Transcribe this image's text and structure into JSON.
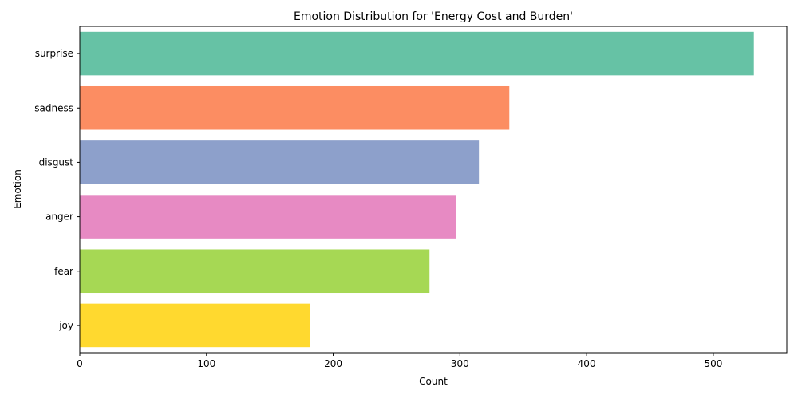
{
  "chart_data": {
    "type": "bar",
    "orientation": "horizontal",
    "title": "Emotion Distribution for 'Energy Cost and Burden'",
    "xlabel": "Count",
    "ylabel": "Emotion",
    "categories": [
      "surprise",
      "sadness",
      "disgust",
      "anger",
      "fear",
      "joy"
    ],
    "values": [
      532,
      339,
      315,
      297,
      276,
      182
    ],
    "colors": [
      "#66c2a5",
      "#fc8d62",
      "#8da0cb",
      "#e78ac3",
      "#a6d854",
      "#ffd92f"
    ],
    "xlim": [
      0,
      558
    ],
    "xticks": [
      0,
      100,
      200,
      300,
      400,
      500
    ],
    "grid": false,
    "legend": "none"
  }
}
